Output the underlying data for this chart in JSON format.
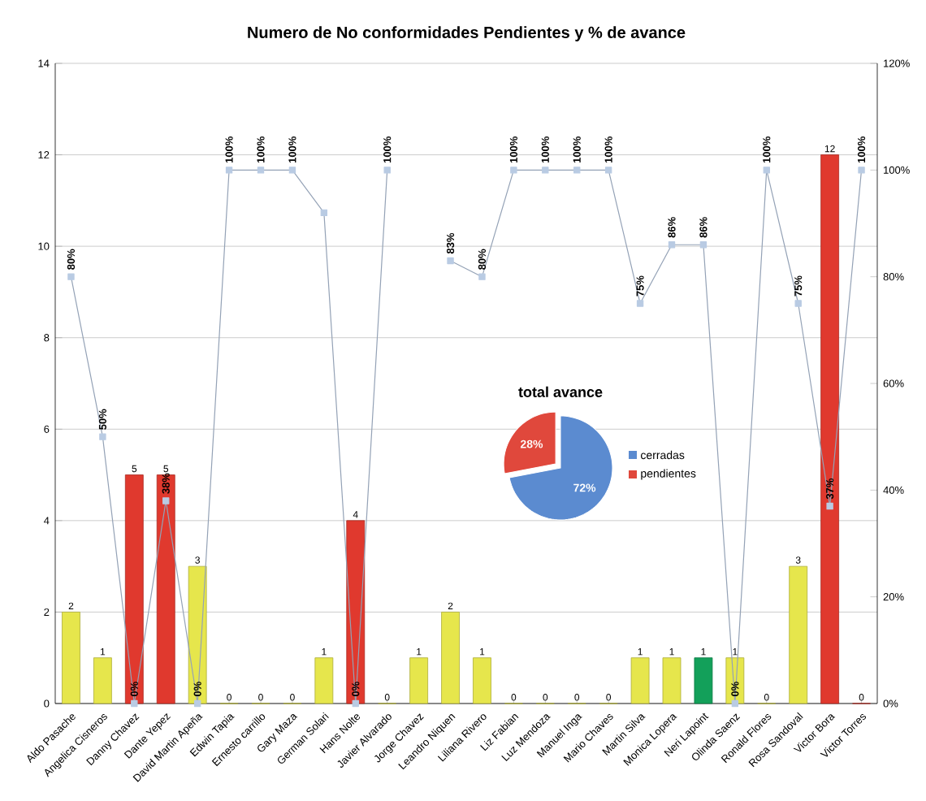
{
  "chart_data": [
    {
      "type": "bar",
      "title": "Numero de No conformidades Pendientes y % de avance",
      "categories": [
        "Aldo Pasache",
        "Angelica Cisneros",
        "Danny Chavez",
        "Dante Yepez",
        "David Martin Apeña",
        "Edwin Tapia",
        "Ernesto carrillo",
        "Gary Maza",
        "German Solari",
        "Hans Nolte",
        "Javier Alvarado",
        "Jorge Chavez",
        "Leandro Niquen",
        "Liliana Rivero",
        "Liz Fabian",
        "Luz Mendoza",
        "Manuel Inga",
        "Mario Chaves",
        "Martin Silva",
        "Monica Lopera",
        "Neri Lapoint",
        "Olinda Saenz",
        "Ronald Flores",
        "Rosa Sandoval",
        "Victor Bora",
        "Victor Torres"
      ],
      "series": [
        {
          "type": "bar",
          "colors": [
            "#e6e64c",
            "#e6e64c",
            "#e0392e",
            "#e0392e",
            "#e6e64c",
            "#e6e64c",
            "#e6e64c",
            "#e6e64c",
            "#e6e64c",
            "#e0392e",
            "#e6e64c",
            "#e6e64c",
            "#e6e64c",
            "#e6e64c",
            "#e6e64c",
            "#e6e64c",
            "#e6e64c",
            "#e6e64c",
            "#e6e64c",
            "#e6e64c",
            "#13a05a",
            "#e6e64c",
            "#e6e64c",
            "#e6e64c",
            "#e0392e",
            "#e0392e"
          ],
          "values": [
            2,
            1,
            5,
            5,
            3,
            0,
            0,
            0,
            1,
            4,
            0,
            1,
            2,
            1,
            0,
            0,
            0,
            0,
            1,
            1,
            1,
            1,
            0,
            3,
            12,
            0
          ],
          "value_labels": [
            "2",
            "1",
            "5",
            "5",
            "3",
            "0",
            "0",
            "0",
            "1",
            "4",
            "0",
            "1",
            "2",
            "1",
            "0",
            "0",
            "0",
            "0",
            "1",
            "1",
            "1",
            "1",
            "0",
            "3",
            "12",
            "0"
          ]
        },
        {
          "type": "line",
          "axis": "y2",
          "color": "#b9cbe3",
          "values": [
            80,
            50,
            0,
            38,
            0,
            100,
            100,
            100,
            92,
            0,
            100,
            null,
            83,
            80,
            100,
            100,
            100,
            100,
            75,
            86,
            86,
            0,
            100,
            75,
            37,
            100
          ],
          "value_labels": [
            "80%",
            "50%",
            "0%",
            "38%",
            "0%",
            "100%",
            "100%",
            "100%",
            null,
            "0%",
            "100%",
            null,
            "83%",
            "80%",
            "100%",
            "100%",
            "100%",
            "100%",
            "75%",
            "86%",
            "86%",
            "0%",
            "100%",
            "75%",
            "37%",
            "100%"
          ]
        }
      ],
      "ylim": [
        0,
        14
      ],
      "yticks": [
        0,
        2,
        4,
        6,
        8,
        10,
        12,
        14
      ],
      "y2lim": [
        0,
        120
      ],
      "y2ticks": [
        {
          "value": 0,
          "label": "0%"
        },
        {
          "value": 20,
          "label": "20%"
        },
        {
          "value": 40,
          "label": "40%"
        },
        {
          "value": 60,
          "label": "60%"
        },
        {
          "value": 80,
          "label": "80%"
        },
        {
          "value": 100,
          "label": "100%"
        },
        {
          "value": 120,
          "label": "120%"
        }
      ],
      "grid": "y",
      "marker": "square"
    },
    {
      "type": "pie",
      "title": "total avance",
      "categories": [
        "cerradas",
        "pendientes"
      ],
      "values": [
        72,
        28
      ],
      "colors": [
        "#5b8bd0",
        "#e0483c"
      ],
      "value_labels": [
        "72%",
        "28%"
      ],
      "legend": "right"
    }
  ]
}
